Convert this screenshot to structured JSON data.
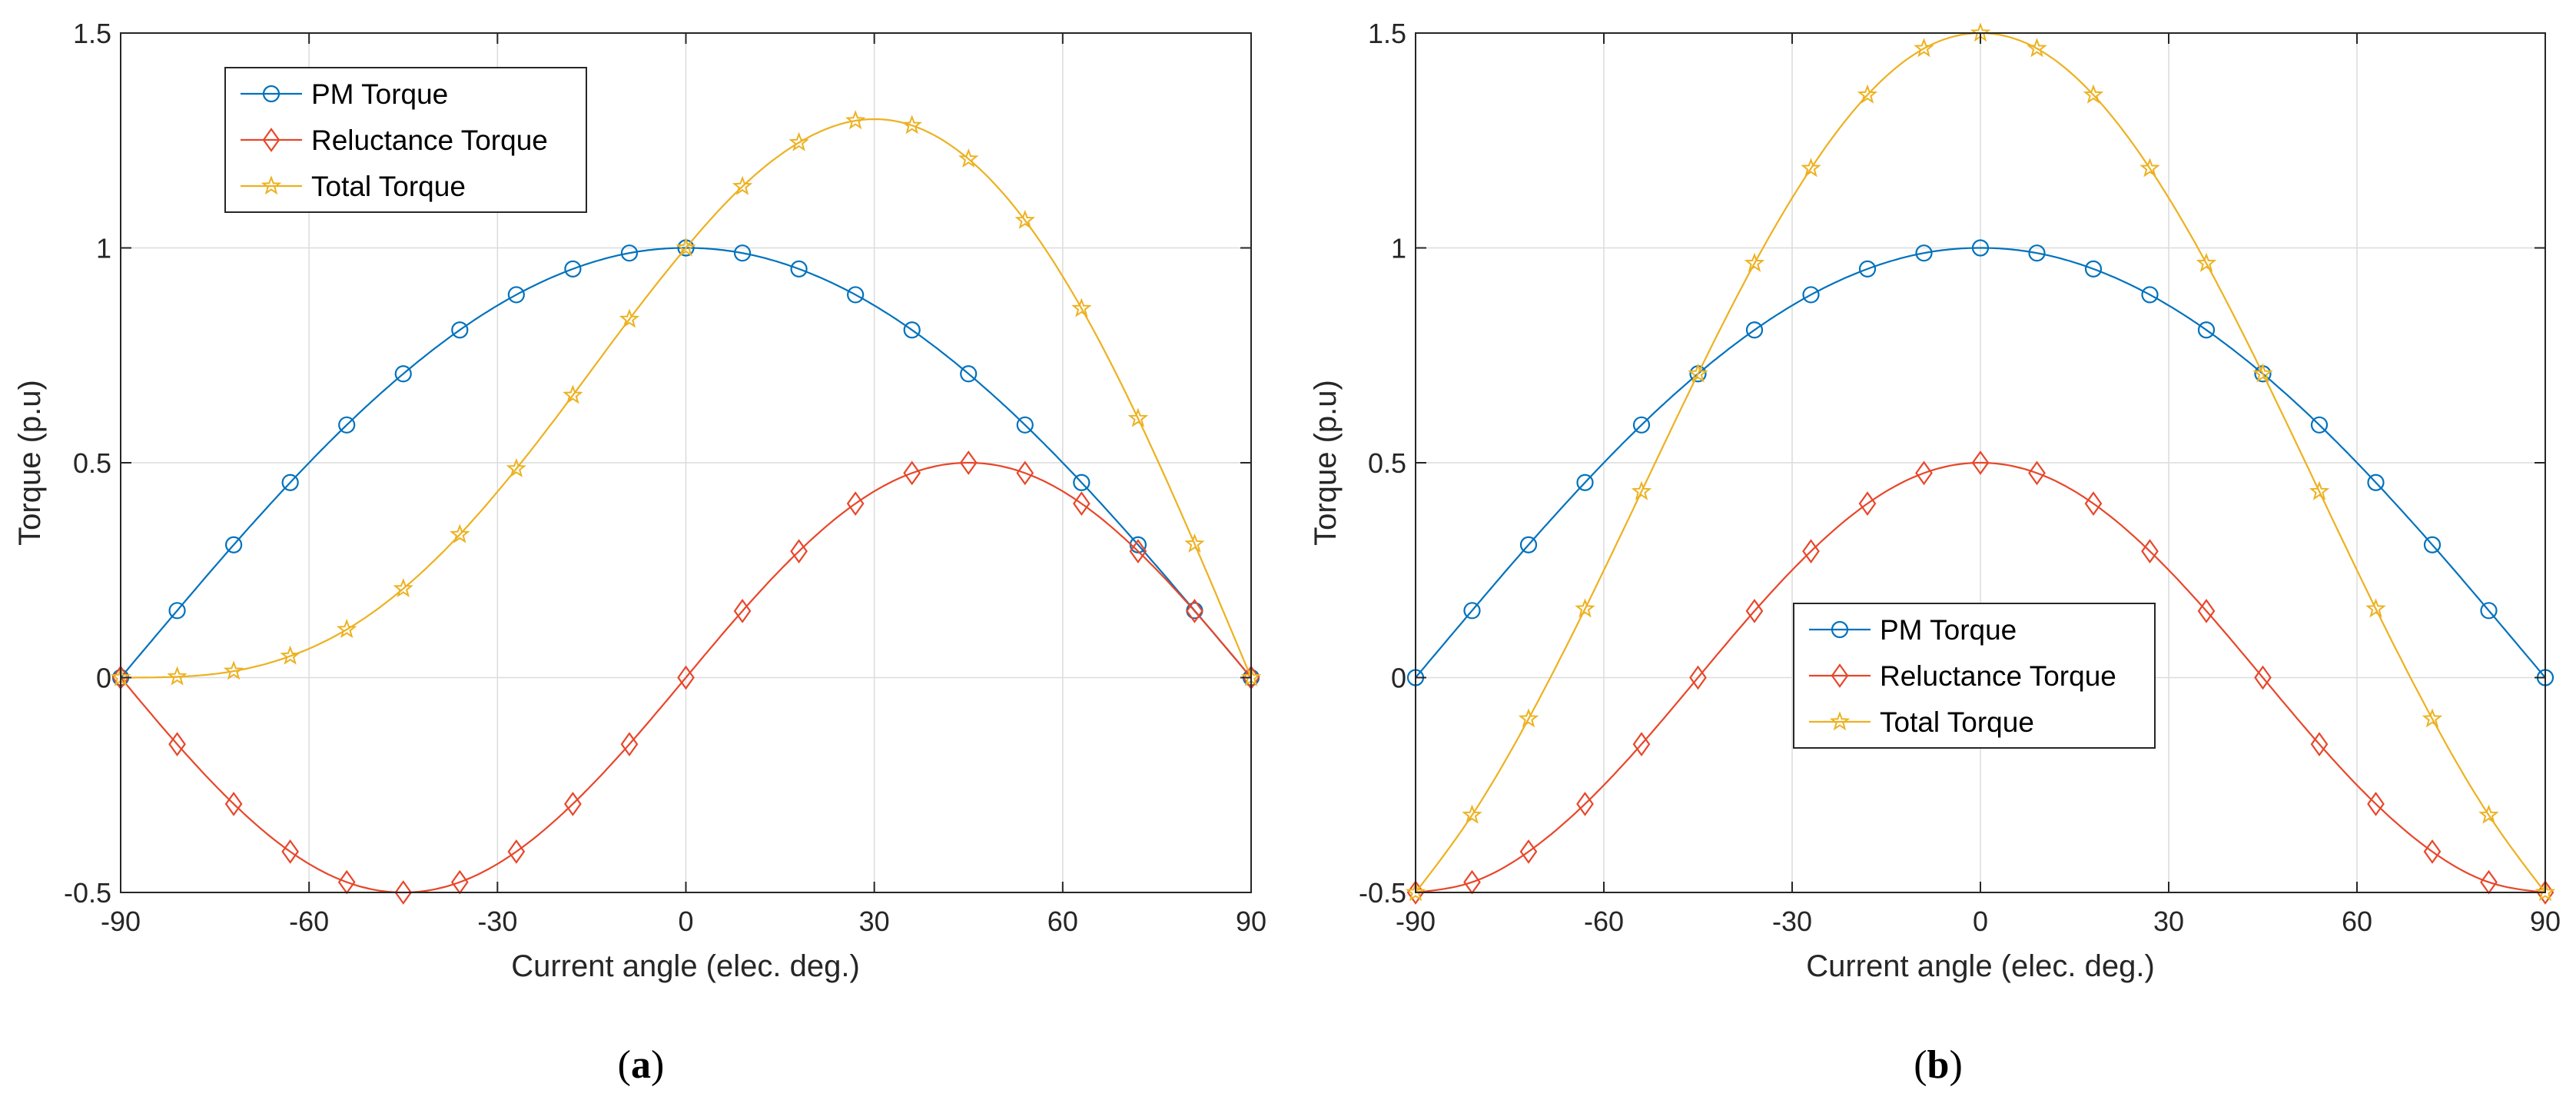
{
  "colors": {
    "pm": "#0072BD",
    "reluctance": "#E8462A",
    "total": "#EDB120",
    "grid": "#dcdcdc",
    "axis": "#262626"
  },
  "chart_data": [
    {
      "type": "line",
      "caption_letter": "a",
      "caption_open": "(",
      "caption_close": ")",
      "xlabel": "Current angle (elec. deg.)",
      "ylabel": "Torque (p.u)",
      "xlim": [
        -90,
        90
      ],
      "ylim": [
        -0.5,
        1.5
      ],
      "xticks": [
        -90,
        -60,
        -30,
        0,
        30,
        60,
        90
      ],
      "yticks": [
        -0.5,
        0,
        0.5,
        1,
        1.5
      ],
      "xtick_labels": [
        "-90",
        "-60",
        "-30",
        "0",
        "30",
        "60",
        "90"
      ],
      "ytick_labels": [
        "-0.5",
        "0",
        "0.5",
        "1",
        "1.5"
      ],
      "grid": true,
      "legend_position": "top-left",
      "x": [
        -90,
        -81,
        -72,
        -63,
        -54,
        -45,
        -36,
        -27,
        -18,
        -9,
        0,
        9,
        18,
        27,
        36,
        45,
        54,
        63,
        72,
        81,
        90
      ],
      "series": [
        {
          "name": "PM Torque",
          "marker": "circle",
          "color_key": "pm",
          "values": [
            0,
            0.156,
            0.309,
            0.454,
            0.588,
            0.707,
            0.809,
            0.891,
            0.951,
            0.988,
            1,
            0.988,
            0.951,
            0.891,
            0.809,
            0.707,
            0.588,
            0.454,
            0.309,
            0.156,
            0
          ]
        },
        {
          "name": "Reluctance Torque",
          "marker": "diamond",
          "color_key": "reluctance",
          "values": [
            0,
            -0.155,
            -0.294,
            -0.405,
            -0.476,
            -0.5,
            -0.476,
            -0.405,
            -0.294,
            -0.155,
            0,
            0.155,
            0.294,
            0.405,
            0.476,
            0.5,
            0.476,
            0.405,
            0.294,
            0.155,
            0
          ]
        },
        {
          "name": "Total Torque",
          "marker": "star",
          "color_key": "total",
          "values": [
            0,
            0.002,
            0.015,
            0.05,
            0.112,
            0.207,
            0.333,
            0.486,
            0.657,
            0.834,
            1,
            1.143,
            1.245,
            1.296,
            1.285,
            1.207,
            1.064,
            0.859,
            0.603,
            0.311,
            0
          ]
        }
      ]
    },
    {
      "type": "line",
      "caption_letter": "b",
      "caption_open": "(",
      "caption_close": ")",
      "xlabel": "Current angle (elec. deg.)",
      "ylabel": "Torque (p.u)",
      "xlim": [
        -90,
        90
      ],
      "ylim": [
        -0.5,
        1.5
      ],
      "xticks": [
        -90,
        -60,
        -30,
        0,
        30,
        60,
        90
      ],
      "yticks": [
        -0.5,
        0,
        0.5,
        1,
        1.5
      ],
      "xtick_labels": [
        "-90",
        "-60",
        "-30",
        "0",
        "30",
        "60",
        "90"
      ],
      "ytick_labels": [
        "-0.5",
        "0",
        "0.5",
        "1",
        "1.5"
      ],
      "grid": true,
      "legend_position": "bottom-center",
      "x": [
        -90,
        -81,
        -72,
        -63,
        -54,
        -45,
        -36,
        -27,
        -18,
        -9,
        0,
        9,
        18,
        27,
        36,
        45,
        54,
        63,
        72,
        81,
        90
      ],
      "series": [
        {
          "name": "PM Torque",
          "marker": "circle",
          "color_key": "pm",
          "values": [
            0,
            0.156,
            0.309,
            0.454,
            0.588,
            0.707,
            0.809,
            0.891,
            0.951,
            0.988,
            1,
            0.988,
            0.951,
            0.891,
            0.809,
            0.707,
            0.588,
            0.454,
            0.309,
            0.156,
            0
          ]
        },
        {
          "name": "Reluctance Torque",
          "marker": "diamond",
          "color_key": "reluctance",
          "values": [
            -0.5,
            -0.476,
            -0.405,
            -0.294,
            -0.155,
            0,
            0.155,
            0.294,
            0.405,
            0.476,
            0.5,
            0.476,
            0.405,
            0.294,
            0.155,
            0,
            -0.155,
            -0.294,
            -0.405,
            -0.476,
            -0.5
          ]
        },
        {
          "name": "Total Torque",
          "marker": "star",
          "color_key": "total",
          "values": [
            -0.5,
            -0.32,
            -0.096,
            0.16,
            0.433,
            0.707,
            0.964,
            1.185,
            1.356,
            1.464,
            1.5,
            1.464,
            1.356,
            1.185,
            0.964,
            0.707,
            0.433,
            0.16,
            -0.096,
            -0.32,
            -0.5
          ]
        }
      ]
    }
  ]
}
